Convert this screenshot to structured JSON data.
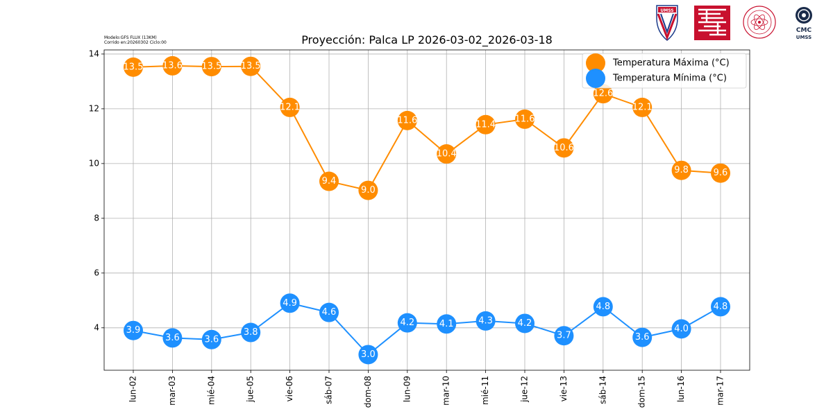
{
  "meta": {
    "model_line": "Modelo:GFS FLUX (13KM)",
    "run_line": "Corrido en:20260302 Ciclo:00"
  },
  "logos": {
    "umss_shield_text": "UMSS",
    "cmc_text": "CMC",
    "cmc_sub": "UMSS"
  },
  "chart_data": {
    "type": "line",
    "title": "Proyección: Palca LP 2026-03-02_2026-03-18",
    "xlabel": "",
    "ylabel": "",
    "categories": [
      "lun-02",
      "mar-03",
      "mié-04",
      "jue-05",
      "vie-06",
      "sáb-07",
      "dom-08",
      "lun-09",
      "mar-10",
      "mié-11",
      "jue-12",
      "vie-13",
      "sáb-14",
      "dom-15",
      "lun-16",
      "mar-17"
    ],
    "ylim": [
      2.45,
      14.15
    ],
    "yticks": [
      4,
      6,
      8,
      10,
      12,
      14
    ],
    "grid": true,
    "legend_position": "top-right",
    "series": [
      {
        "name": "Temperatura Máxima  (°C)",
        "color": "#ff8c00",
        "values": [
          13.52,
          13.57,
          13.54,
          13.55,
          12.05,
          9.35,
          9.02,
          11.57,
          10.35,
          11.42,
          11.62,
          10.57,
          12.55,
          12.05,
          9.75,
          9.65
        ],
        "labels": [
          "13.5",
          "13.6",
          "13.5",
          "13.5",
          "12.1",
          "9.4",
          "9.0",
          "11.6",
          "10.4",
          "11.4",
          "11.6",
          "10.6",
          "12.6",
          "12.1",
          "9.8",
          "9.6"
        ]
      },
      {
        "name": "Temperatura Mínima  (°C)",
        "color": "#1e90ff",
        "values": [
          3.9,
          3.63,
          3.57,
          3.83,
          4.9,
          4.56,
          3.02,
          4.18,
          4.14,
          4.25,
          4.16,
          3.71,
          4.77,
          3.65,
          3.96,
          4.77
        ],
        "labels": [
          "3.9",
          "3.6",
          "3.6",
          "3.8",
          "4.9",
          "4.6",
          "3.0",
          "4.2",
          "4.1",
          "4.3",
          "4.2",
          "3.7",
          "4.8",
          "3.6",
          "4.0",
          "4.8"
        ]
      }
    ]
  }
}
